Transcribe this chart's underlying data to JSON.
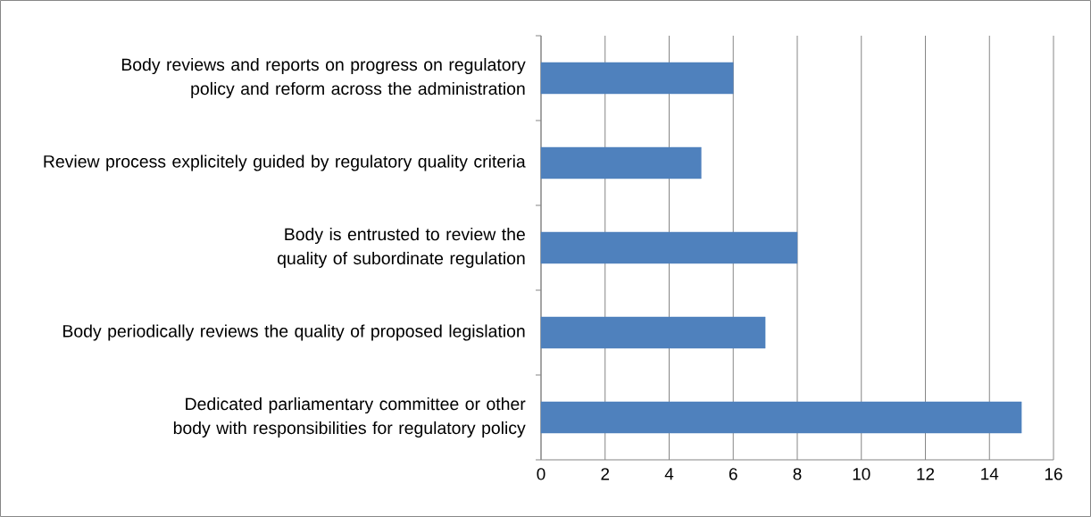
{
  "chart_data": {
    "type": "bar",
    "orientation": "horizontal",
    "categories": [
      "Body reviews and reports on progress on regulatory policy and reform across the administration",
      "Review process explicitely guided by regulatory quality criteria",
      "Body is entrusted to review the quality of subordinate regulation",
      "Body periodically reviews the quality of proposed legislation",
      "Dedicated parliamentary committee or other body with responsibilities for regulatory policy"
    ],
    "values": [
      6,
      5,
      8,
      7,
      15
    ],
    "color": "#4f81bd",
    "xlim": [
      0,
      16
    ],
    "xticks": [
      0,
      2,
      4,
      6,
      8,
      10,
      12,
      14,
      16
    ],
    "grid": "x"
  }
}
